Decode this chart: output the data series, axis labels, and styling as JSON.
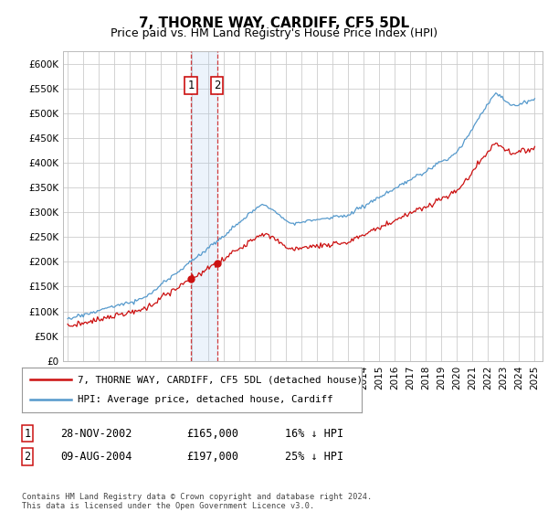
{
  "title": "7, THORNE WAY, CARDIFF, CF5 5DL",
  "subtitle": "Price paid vs. HM Land Registry's House Price Index (HPI)",
  "ylim": [
    0,
    625000
  ],
  "yticks": [
    0,
    50000,
    100000,
    150000,
    200000,
    250000,
    300000,
    350000,
    400000,
    450000,
    500000,
    550000,
    600000
  ],
  "ytick_labels": [
    "£0",
    "£50K",
    "£100K",
    "£150K",
    "£200K",
    "£250K",
    "£300K",
    "£350K",
    "£400K",
    "£450K",
    "£500K",
    "£550K",
    "£600K"
  ],
  "hpi_color": "#5599cc",
  "price_color": "#cc1111",
  "sale1_date": 2002.91,
  "sale1_price": 165000,
  "sale2_date": 2004.6,
  "sale2_price": 197000,
  "legend_entry1": "7, THORNE WAY, CARDIFF, CF5 5DL (detached house)",
  "legend_entry2": "HPI: Average price, detached house, Cardiff",
  "table_row1": [
    "1",
    "28-NOV-2002",
    "£165,000",
    "16% ↓ HPI"
  ],
  "table_row2": [
    "2",
    "09-AUG-2004",
    "£197,000",
    "25% ↓ HPI"
  ],
  "footnote": "Contains HM Land Registry data © Crown copyright and database right 2024.\nThis data is licensed under the Open Government Licence v3.0.",
  "background_color": "#ffffff",
  "grid_color": "#cccccc",
  "title_fontsize": 11,
  "subtitle_fontsize": 9,
  "tick_fontsize": 7.5
}
